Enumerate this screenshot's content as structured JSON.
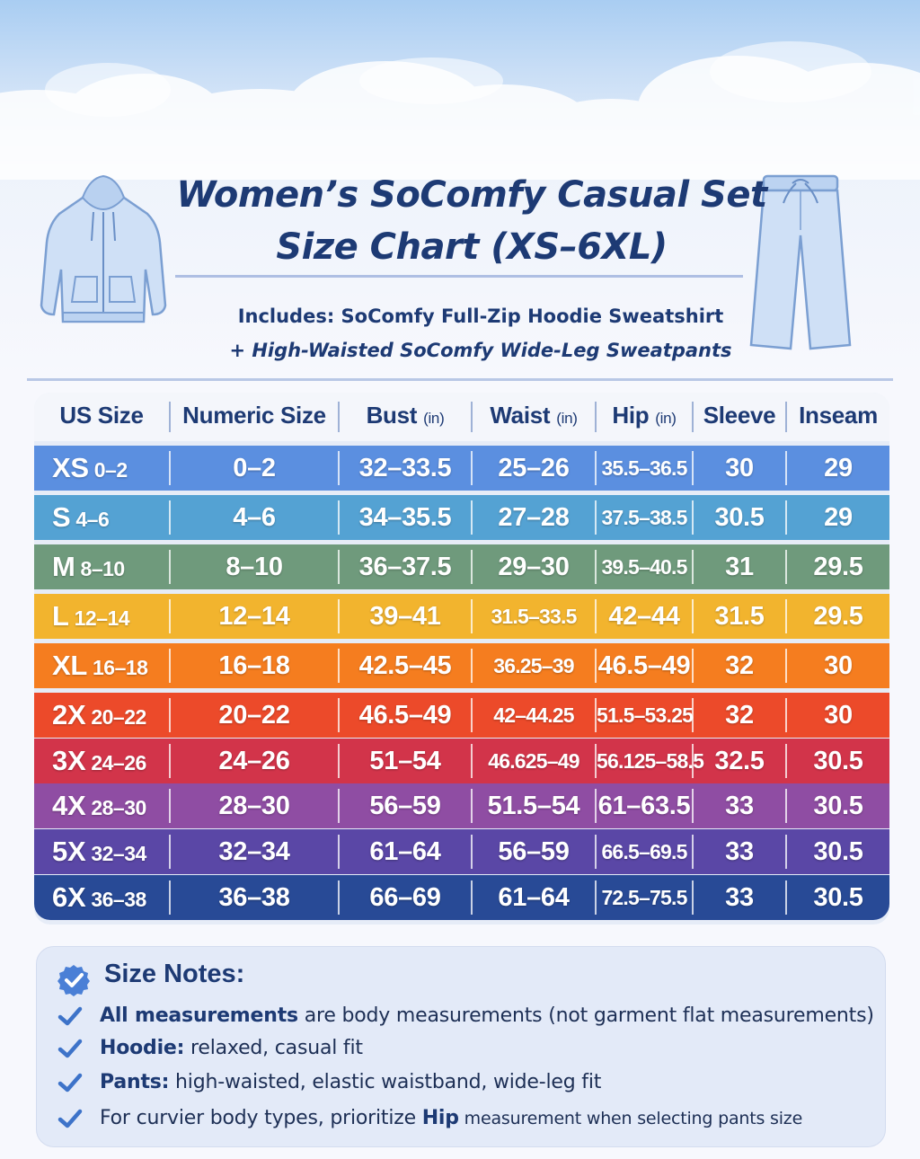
{
  "title_line1": "Women’s SoComfy Casual Set",
  "title_line2": "Size Chart (XS–6XL)",
  "includes": {
    "line1": "Includes: SoComfy Full-Zip Hoodie Sweatshirt",
    "line2": "+ High-Waisted SoComfy Wide-Leg Sweatpants"
  },
  "table": {
    "headers": {
      "us_size": "US Size",
      "numeric_size": "Numeric Size",
      "bust": "Bust",
      "waist": "Waist",
      "hip": "Hip",
      "sleeve": "Sleeve",
      "inseam": "Inseam",
      "unit": "(in)"
    },
    "rows": [
      {
        "size": "XS",
        "range": "0–2",
        "numeric": "0–2",
        "bust": "32–33.5",
        "waist": "25–26",
        "hip": "35.5–36.5",
        "sleeve": "30",
        "inseam": "29",
        "color": "#5b8fe0"
      },
      {
        "size": "S",
        "range": "4–6",
        "numeric": "4–6",
        "bust": "34–35.5",
        "waist": "27–28",
        "hip": "37.5–38.5",
        "sleeve": "30.5",
        "inseam": "29",
        "color": "#54a2d3"
      },
      {
        "size": "M",
        "range": "8–10",
        "numeric": "8–10",
        "bust": "36–37.5",
        "waist": "29–30",
        "hip": "39.5–40.5",
        "sleeve": "31",
        "inseam": "29.5",
        "color": "#6f9a7c"
      },
      {
        "size": "L",
        "range": "12–14",
        "numeric": "12–14",
        "bust": "39–41",
        "waist": "31.5–33.5",
        "hip": "42–44",
        "sleeve": "31.5",
        "inseam": "29.5",
        "color": "#f2b42e"
      },
      {
        "size": "XL",
        "range": "16–18",
        "numeric": "16–18",
        "bust": "42.5–45",
        "waist": "36.25–39",
        "hip": "46.5–49",
        "sleeve": "32",
        "inseam": "30",
        "color": "#f57d1f"
      },
      {
        "size": "2X",
        "range": "20–22",
        "numeric": "20–22",
        "bust": "46.5–49",
        "waist": "42–44.25",
        "hip": "51.5–53.25",
        "sleeve": "32",
        "inseam": "30",
        "color": "#ec4a2a"
      },
      {
        "size": "3X",
        "range": "24–26",
        "numeric": "24–26",
        "bust": "51–54",
        "waist": "46.625–49",
        "hip": "56.125–58.5",
        "sleeve": "32.5",
        "inseam": "30.5",
        "color": "#d2344a"
      },
      {
        "size": "4X",
        "range": "28–30",
        "numeric": "28–30",
        "bust": "56–59",
        "waist": "51.5–54",
        "hip": "61–63.5",
        "sleeve": "33",
        "inseam": "30.5",
        "color": "#8f4da3"
      },
      {
        "size": "5X",
        "range": "32–34",
        "numeric": "32–34",
        "bust": "61–64",
        "waist": "56–59",
        "hip": "66.5–69.5",
        "sleeve": "33",
        "inseam": "30.5",
        "color": "#5a47a6"
      },
      {
        "size": "6X",
        "range": "36–38",
        "numeric": "36–38",
        "bust": "66–69",
        "waist": "61–64",
        "hip": "72.5–75.5",
        "sleeve": "33",
        "inseam": "30.5",
        "color": "#284a96"
      }
    ]
  },
  "notes": {
    "title": "Size Notes:",
    "items": [
      {
        "bold": "All measurements",
        "text": " are body measurements (not garment flat measurements)"
      },
      {
        "bold": "Hoodie:",
        "text": " relaxed, casual fit"
      },
      {
        "bold": "Pants:",
        "text": " high-waisted, elastic waistband, wide-leg fit"
      },
      {
        "pre": "For curvier body types, prioritize ",
        "bold": "Hip",
        "text": " measurement when selecting pants size"
      }
    ]
  },
  "colors": {
    "title": "#1d3a74",
    "accent": "#4a7fd6",
    "check": "#3d73c9"
  },
  "icons": [
    "hoodie-illustration",
    "pants-illustration",
    "checkmark-badge-icon",
    "checkmark-icon"
  ]
}
